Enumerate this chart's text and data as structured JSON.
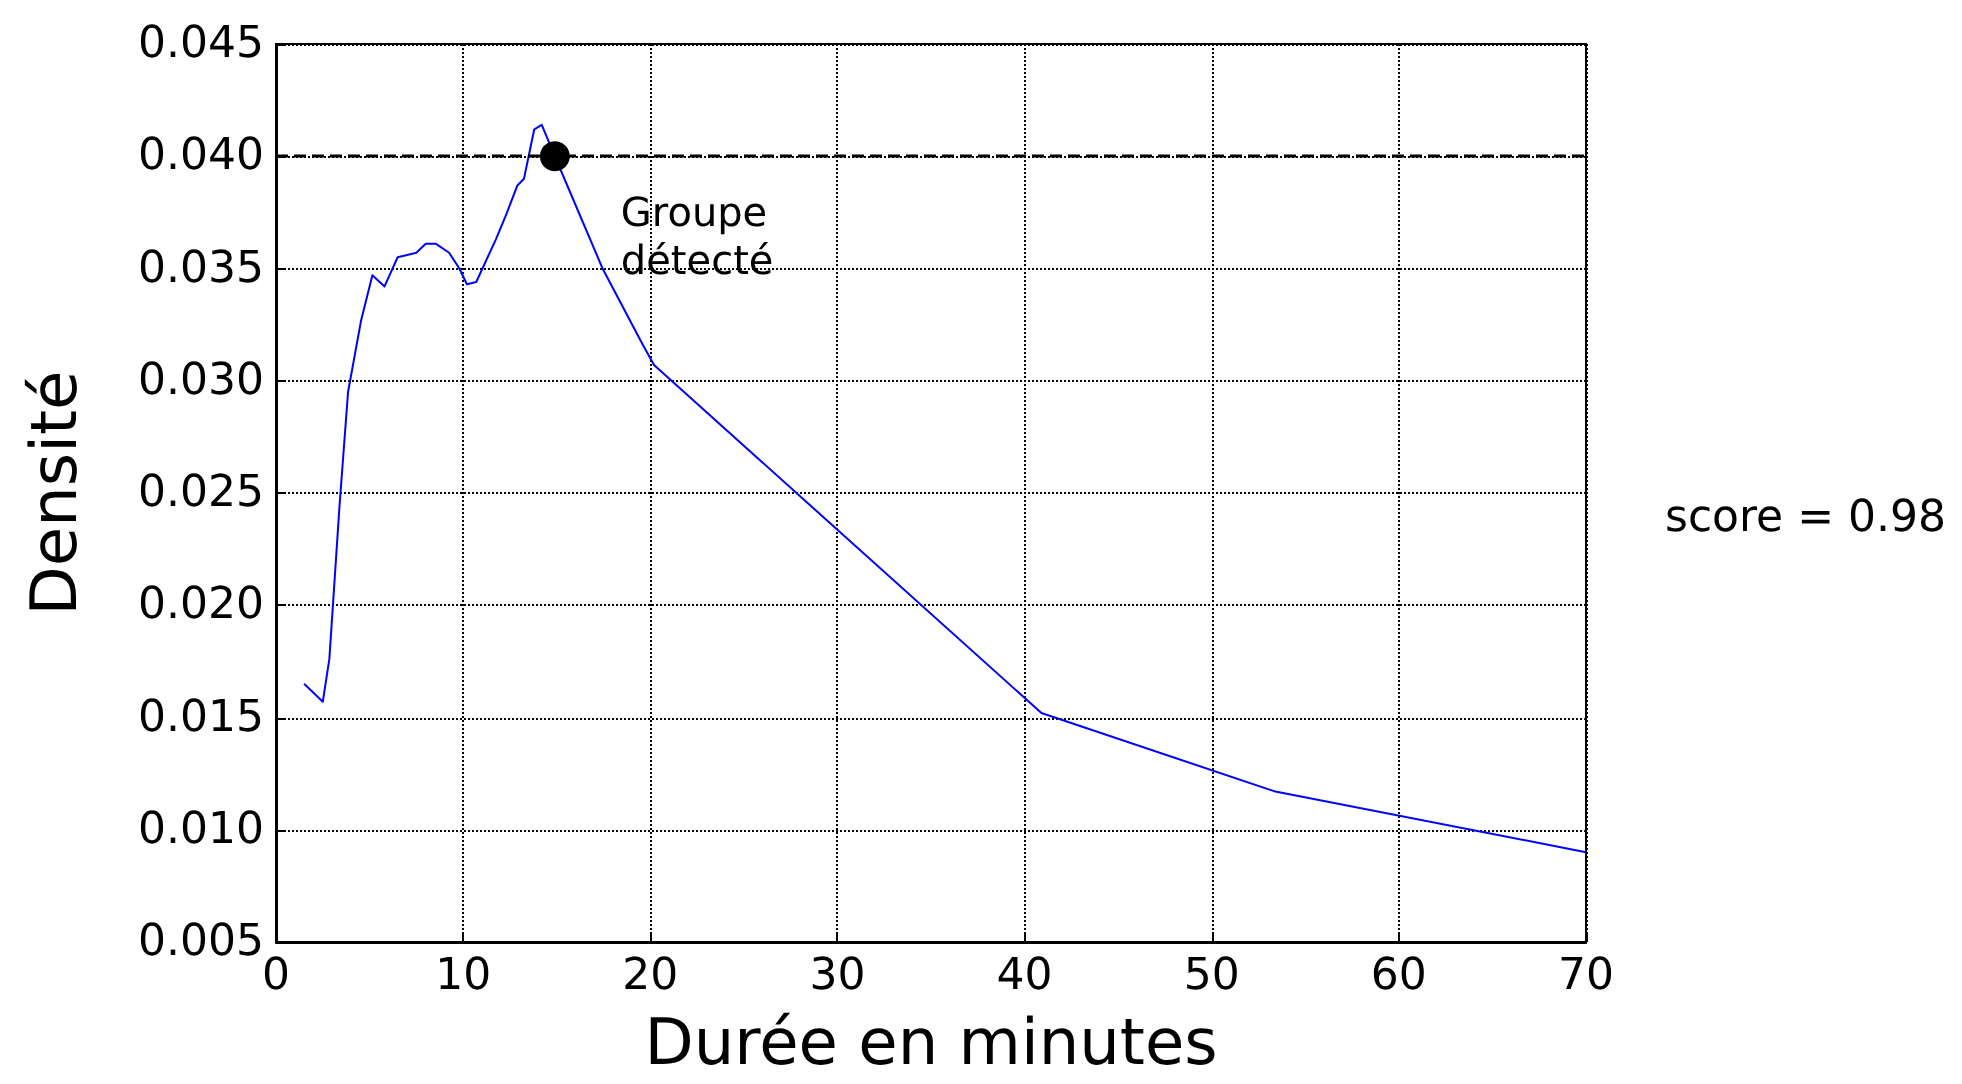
{
  "chart_data": {
    "type": "line",
    "xlabel": "Durée en minutes",
    "ylabel": "Densité",
    "series": [
      {
        "color": "#0000ff",
        "x": [
          1.5,
          2.5,
          2.85,
          3.4,
          3.85,
          4.55,
          5.15,
          5.8,
          6.5,
          7.5,
          8.0,
          8.55,
          9.25,
          9.8,
          10.2,
          10.7,
          11.75,
          12.3,
          12.9,
          13.25,
          13.8,
          14.2,
          14.95,
          17.45,
          19.6,
          20.2,
          40.9,
          53.4,
          70
        ],
        "values": [
          0.0165,
          0.0157,
          0.0176,
          0.0245,
          0.0295,
          0.0327,
          0.0347,
          0.0342,
          0.0355,
          0.0357,
          0.0361,
          0.0361,
          0.0357,
          0.035,
          0.0343,
          0.0344,
          0.0363,
          0.0374,
          0.0387,
          0.039,
          0.0412,
          0.0414,
          0.0399,
          0.035,
          0.0316,
          0.0307,
          0.0152,
          0.0117,
          0.009
        ]
      },
      {
        "type": "scatter",
        "marker": "circle",
        "color": "#000000",
        "x": [
          14.9
        ],
        "values": [
          0.04
        ]
      }
    ],
    "ref_lines": [
      {
        "axis": "y",
        "value": 0.04,
        "color": "#000000",
        "line_style": "dashed"
      }
    ],
    "annotations": [
      {
        "text": "Groupe\ndétecté",
        "x": 14.9,
        "y": 0.04
      },
      "score = 0.98"
    ],
    "xlim": [
      0,
      70
    ],
    "xticks": [
      0,
      10,
      20,
      30,
      40,
      50,
      60,
      70
    ],
    "ylim": [
      0.005,
      0.045
    ],
    "yticks": [
      {
        "value": 0.005,
        "label": "0.005"
      },
      {
        "value": 0.01,
        "label": "0.010"
      },
      {
        "value": 0.015,
        "label": "0.015"
      },
      {
        "value": 0.02,
        "label": "0.020"
      },
      {
        "value": 0.025,
        "label": "0.025"
      },
      {
        "value": 0.03,
        "label": "0.030"
      },
      {
        "value": 0.035,
        "label": "0.035"
      },
      {
        "value": 0.04,
        "label": "0.040"
      },
      {
        "value": 0.045,
        "label": "0.045"
      }
    ],
    "grid": true,
    "marker": "none",
    "line_style": "solid"
  }
}
